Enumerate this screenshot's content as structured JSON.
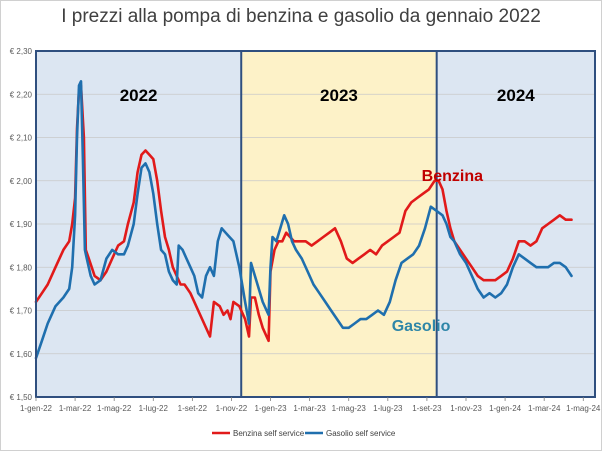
{
  "chart_data": {
    "type": "line",
    "title": "I prezzi alla pompa di benzina e gasolio da gennaio 2022",
    "ylim": [
      1.5,
      2.3
    ],
    "xlim": [
      0,
      28.6
    ],
    "y_ticks": [
      "€ 1,50",
      "€ 1,60",
      "€ 1,70",
      "€ 1,80",
      "€ 1,90",
      "€ 2,00",
      "€ 2,10",
      "€ 2,20",
      "€ 2,30"
    ],
    "y_tick_values": [
      1.5,
      1.6,
      1.7,
      1.8,
      1.9,
      2.0,
      2.1,
      2.2,
      2.3
    ],
    "x_ticks": [
      "1-gen-22",
      "1-mar-22",
      "1-mag-22",
      "1-lug-22",
      "1-set-22",
      "1-nov-22",
      "1-gen-23",
      "1-mar-23",
      "1-mag-23",
      "1-lug-23",
      "1-set-23",
      "1-nov-23",
      "1-gen-24",
      "1-mar-24",
      "1-mag-24"
    ],
    "x_tick_values": [
      0,
      2,
      4,
      6,
      8,
      10,
      12,
      14,
      16,
      18,
      20,
      22,
      24,
      26,
      28
    ],
    "periods": [
      {
        "label": "2022",
        "start": 0,
        "end": 10.5,
        "color": "#dce6f2"
      },
      {
        "label": "2023",
        "start": 10.5,
        "end": 20.5,
        "color": "#fdf2c8"
      },
      {
        "label": "2024",
        "start": 20.5,
        "end": 28.6,
        "color": "#dce6f2"
      }
    ],
    "grid": true,
    "legend_position": "bottom",
    "series": [
      {
        "name": "Benzina self service",
        "annotation": "Benzina",
        "color": "#e11a1a",
        "label_color": "#c00000",
        "points": [
          [
            0,
            1.72
          ],
          [
            0.3,
            1.74
          ],
          [
            0.6,
            1.76
          ],
          [
            1.0,
            1.8
          ],
          [
            1.4,
            1.84
          ],
          [
            1.7,
            1.86
          ],
          [
            1.85,
            1.9
          ],
          [
            2.0,
            1.96
          ],
          [
            2.1,
            2.12
          ],
          [
            2.2,
            2.21
          ],
          [
            2.3,
            2.22
          ],
          [
            2.45,
            2.1
          ],
          [
            2.55,
            1.84
          ],
          [
            2.7,
            1.82
          ],
          [
            2.85,
            1.8
          ],
          [
            3.0,
            1.78
          ],
          [
            3.3,
            1.77
          ],
          [
            3.6,
            1.79
          ],
          [
            3.9,
            1.82
          ],
          [
            4.2,
            1.85
          ],
          [
            4.5,
            1.86
          ],
          [
            4.7,
            1.9
          ],
          [
            5.0,
            1.95
          ],
          [
            5.2,
            2.02
          ],
          [
            5.4,
            2.06
          ],
          [
            5.6,
            2.07
          ],
          [
            5.8,
            2.06
          ],
          [
            6.0,
            2.05
          ],
          [
            6.2,
            2.0
          ],
          [
            6.4,
            1.93
          ],
          [
            6.6,
            1.87
          ],
          [
            6.8,
            1.84
          ],
          [
            7.0,
            1.8
          ],
          [
            7.2,
            1.78
          ],
          [
            7.4,
            1.76
          ],
          [
            7.6,
            1.76
          ],
          [
            7.9,
            1.74
          ],
          [
            8.1,
            1.72
          ],
          [
            8.3,
            1.7
          ],
          [
            8.5,
            1.68
          ],
          [
            8.8,
            1.65
          ],
          [
            8.9,
            1.64
          ],
          [
            9.1,
            1.72
          ],
          [
            9.4,
            1.71
          ],
          [
            9.6,
            1.69
          ],
          [
            9.8,
            1.7
          ],
          [
            9.95,
            1.68
          ],
          [
            10.1,
            1.72
          ],
          [
            10.4,
            1.71
          ],
          [
            10.7,
            1.68
          ],
          [
            10.9,
            1.64
          ],
          [
            11.0,
            1.73
          ],
          [
            11.2,
            1.73
          ],
          [
            11.4,
            1.69
          ],
          [
            11.6,
            1.66
          ],
          [
            11.8,
            1.64
          ],
          [
            11.9,
            1.63
          ],
          [
            12.0,
            1.79
          ],
          [
            12.2,
            1.84
          ],
          [
            12.4,
            1.86
          ],
          [
            12.6,
            1.86
          ],
          [
            12.8,
            1.88
          ],
          [
            13.0,
            1.87
          ],
          [
            13.2,
            1.86
          ],
          [
            13.5,
            1.86
          ],
          [
            13.8,
            1.86
          ],
          [
            14.1,
            1.85
          ],
          [
            14.4,
            1.86
          ],
          [
            14.7,
            1.87
          ],
          [
            15.0,
            1.88
          ],
          [
            15.3,
            1.89
          ],
          [
            15.6,
            1.86
          ],
          [
            15.9,
            1.82
          ],
          [
            16.2,
            1.81
          ],
          [
            16.5,
            1.82
          ],
          [
            16.8,
            1.83
          ],
          [
            17.1,
            1.84
          ],
          [
            17.4,
            1.83
          ],
          [
            17.7,
            1.85
          ],
          [
            18.0,
            1.86
          ],
          [
            18.3,
            1.87
          ],
          [
            18.6,
            1.88
          ],
          [
            18.9,
            1.93
          ],
          [
            19.2,
            1.95
          ],
          [
            19.5,
            1.96
          ],
          [
            19.8,
            1.97
          ],
          [
            20.1,
            1.98
          ],
          [
            20.4,
            2.0
          ],
          [
            20.6,
            2.0
          ],
          [
            20.8,
            1.98
          ],
          [
            21.0,
            1.93
          ],
          [
            21.2,
            1.89
          ],
          [
            21.4,
            1.86
          ],
          [
            21.7,
            1.84
          ],
          [
            22.0,
            1.82
          ],
          [
            22.3,
            1.8
          ],
          [
            22.6,
            1.78
          ],
          [
            22.9,
            1.77
          ],
          [
            23.2,
            1.77
          ],
          [
            23.5,
            1.77
          ],
          [
            23.8,
            1.78
          ],
          [
            24.1,
            1.79
          ],
          [
            24.4,
            1.82
          ],
          [
            24.7,
            1.86
          ],
          [
            25.0,
            1.86
          ],
          [
            25.3,
            1.85
          ],
          [
            25.6,
            1.86
          ],
          [
            25.9,
            1.89
          ],
          [
            26.2,
            1.9
          ],
          [
            26.5,
            1.91
          ],
          [
            26.8,
            1.92
          ],
          [
            27.1,
            1.91
          ],
          [
            27.4,
            1.91
          ]
        ]
      },
      {
        "name": "Gasolio self service",
        "annotation": "Gasolio",
        "color": "#1f6fae",
        "label_color": "#2e86a8",
        "points": [
          [
            0,
            1.59
          ],
          [
            0.3,
            1.63
          ],
          [
            0.6,
            1.67
          ],
          [
            1.0,
            1.71
          ],
          [
            1.4,
            1.73
          ],
          [
            1.7,
            1.75
          ],
          [
            1.85,
            1.8
          ],
          [
            2.0,
            1.92
          ],
          [
            2.1,
            2.1
          ],
          [
            2.2,
            2.22
          ],
          [
            2.3,
            2.23
          ],
          [
            2.4,
            2.05
          ],
          [
            2.5,
            1.84
          ],
          [
            2.6,
            1.82
          ],
          [
            2.8,
            1.78
          ],
          [
            3.0,
            1.76
          ],
          [
            3.3,
            1.77
          ],
          [
            3.6,
            1.82
          ],
          [
            3.9,
            1.84
          ],
          [
            4.2,
            1.83
          ],
          [
            4.5,
            1.83
          ],
          [
            4.7,
            1.85
          ],
          [
            5.0,
            1.9
          ],
          [
            5.2,
            1.97
          ],
          [
            5.4,
            2.03
          ],
          [
            5.6,
            2.04
          ],
          [
            5.8,
            2.02
          ],
          [
            6.0,
            1.97
          ],
          [
            6.2,
            1.9
          ],
          [
            6.4,
            1.84
          ],
          [
            6.6,
            1.83
          ],
          [
            6.8,
            1.79
          ],
          [
            7.0,
            1.77
          ],
          [
            7.2,
            1.76
          ],
          [
            7.3,
            1.85
          ],
          [
            7.5,
            1.84
          ],
          [
            7.7,
            1.82
          ],
          [
            7.9,
            1.8
          ],
          [
            8.1,
            1.78
          ],
          [
            8.3,
            1.74
          ],
          [
            8.5,
            1.73
          ],
          [
            8.7,
            1.78
          ],
          [
            8.9,
            1.8
          ],
          [
            9.1,
            1.78
          ],
          [
            9.3,
            1.86
          ],
          [
            9.5,
            1.89
          ],
          [
            9.7,
            1.88
          ],
          [
            9.9,
            1.87
          ],
          [
            10.1,
            1.86
          ],
          [
            10.4,
            1.8
          ],
          [
            10.7,
            1.72
          ],
          [
            10.9,
            1.67
          ],
          [
            11.0,
            1.81
          ],
          [
            11.2,
            1.78
          ],
          [
            11.4,
            1.75
          ],
          [
            11.6,
            1.72
          ],
          [
            11.8,
            1.7
          ],
          [
            11.9,
            1.69
          ],
          [
            12.0,
            1.8
          ],
          [
            12.1,
            1.87
          ],
          [
            12.3,
            1.86
          ],
          [
            12.5,
            1.89
          ],
          [
            12.7,
            1.92
          ],
          [
            12.9,
            1.9
          ],
          [
            13.1,
            1.86
          ],
          [
            13.3,
            1.84
          ],
          [
            13.6,
            1.82
          ],
          [
            13.9,
            1.79
          ],
          [
            14.2,
            1.76
          ],
          [
            14.5,
            1.74
          ],
          [
            14.8,
            1.72
          ],
          [
            15.1,
            1.7
          ],
          [
            15.4,
            1.68
          ],
          [
            15.7,
            1.66
          ],
          [
            16.0,
            1.66
          ],
          [
            16.3,
            1.67
          ],
          [
            16.6,
            1.68
          ],
          [
            16.9,
            1.68
          ],
          [
            17.2,
            1.69
          ],
          [
            17.5,
            1.7
          ],
          [
            17.8,
            1.69
          ],
          [
            18.1,
            1.72
          ],
          [
            18.4,
            1.77
          ],
          [
            18.7,
            1.81
          ],
          [
            19.0,
            1.82
          ],
          [
            19.3,
            1.83
          ],
          [
            19.6,
            1.85
          ],
          [
            19.9,
            1.89
          ],
          [
            20.2,
            1.94
          ],
          [
            20.5,
            1.93
          ],
          [
            20.8,
            1.92
          ],
          [
            21.0,
            1.9
          ],
          [
            21.2,
            1.87
          ],
          [
            21.4,
            1.86
          ],
          [
            21.7,
            1.83
          ],
          [
            22.0,
            1.81
          ],
          [
            22.3,
            1.78
          ],
          [
            22.6,
            1.75
          ],
          [
            22.9,
            1.73
          ],
          [
            23.2,
            1.74
          ],
          [
            23.5,
            1.73
          ],
          [
            23.8,
            1.74
          ],
          [
            24.1,
            1.76
          ],
          [
            24.4,
            1.8
          ],
          [
            24.7,
            1.83
          ],
          [
            25.0,
            1.82
          ],
          [
            25.3,
            1.81
          ],
          [
            25.6,
            1.8
          ],
          [
            25.9,
            1.8
          ],
          [
            26.2,
            1.8
          ],
          [
            26.5,
            1.81
          ],
          [
            26.8,
            1.81
          ],
          [
            27.1,
            1.8
          ],
          [
            27.4,
            1.78
          ]
        ]
      }
    ]
  }
}
